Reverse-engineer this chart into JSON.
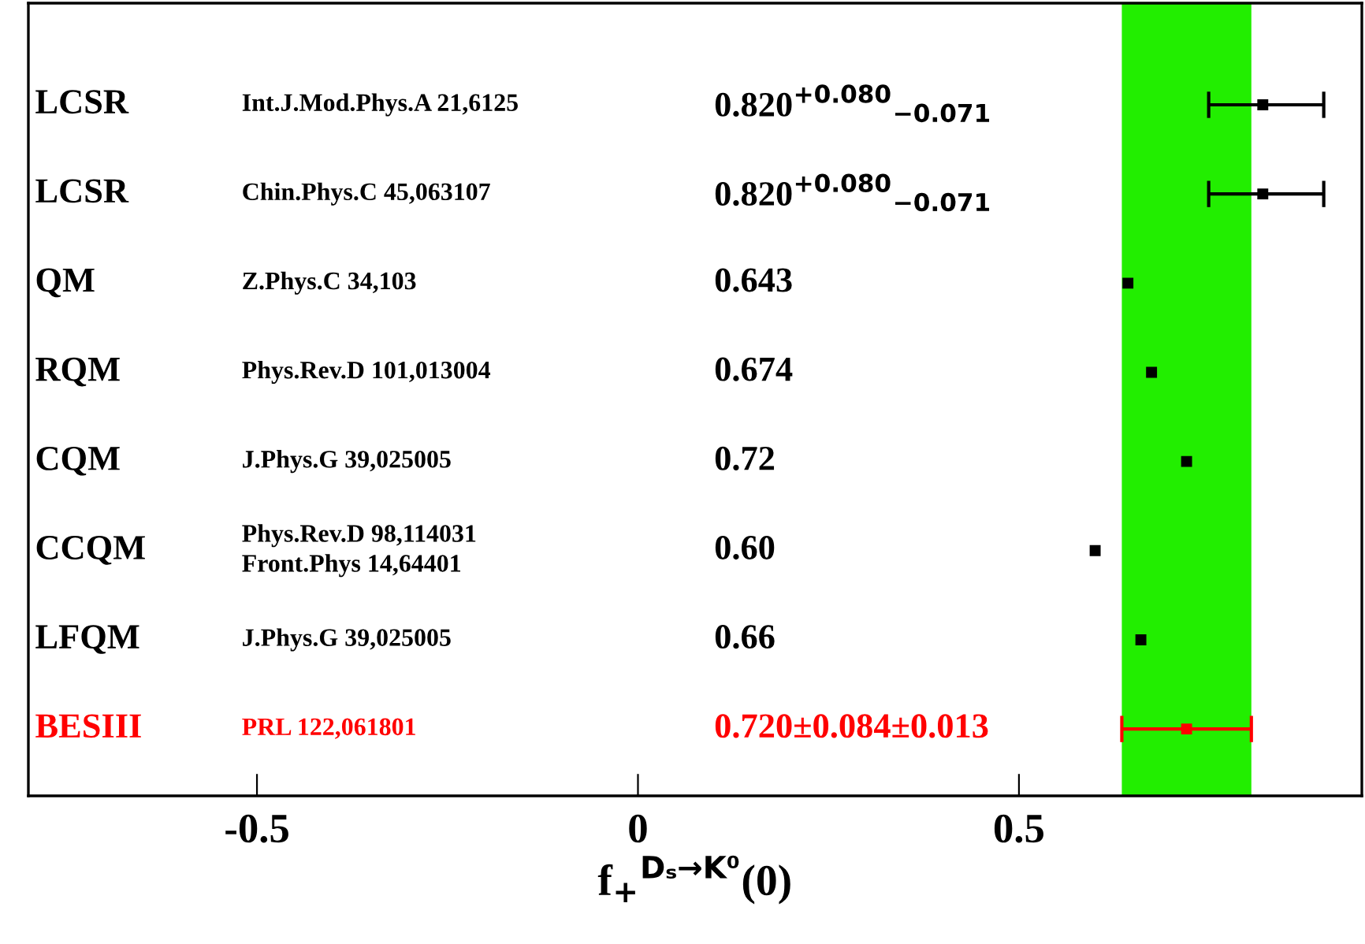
{
  "chart_data": {
    "type": "scatter",
    "orientation": "horizontal",
    "xlabel": "f$_{+}$$^{Dₛ→K⁰}$(0)",
    "categories": [
      "LCSR",
      "LCSR",
      "QM",
      "RQM",
      "CQM",
      "CCQM",
      "LFQM",
      "BESIII"
    ],
    "values": [
      0.82,
      0.82,
      0.643,
      0.674,
      0.72,
      0.6,
      0.66,
      0.72
    ],
    "colors": [
      "#000000",
      "#000000",
      "#000000",
      "#000000",
      "#000000",
      "#000000",
      "#000000",
      "#ff0000"
    ],
    "errors": [
      [
        0.749,
        0.9
      ],
      [
        0.749,
        0.9
      ],
      null,
      null,
      null,
      null,
      null,
      0.085
    ],
    "annotations": [
      "Int.J.Mod.Phys.A 21,6125",
      "Chin.Phys.C 45,063107",
      "Z.Phys.C 34,103",
      "Phys.Rev.D 101,013004",
      "J.Phys.G 39,025005",
      "Phys.Rev.D 98,114031\nFront.Phys 14,64401",
      "J.Phys.G 39,025005",
      "PRL 122,061801",
      "0.820$^{+0.080}$$_{−0.071}$",
      "0.820$^{+0.080}$$_{−0.071}$",
      "0.643",
      "0.674",
      "0.72",
      "0.60",
      "0.66",
      "0.720±0.084±0.013"
    ],
    "bands": [
      {
        "axis": "x",
        "from": 0.635,
        "to": 0.805,
        "color": "#22ee00"
      }
    ],
    "xlim": [
      -0.8,
      0.95
    ],
    "xticks": [
      -0.5,
      0,
      0.5
    ],
    "marker": "square",
    "grid": false,
    "legend": false
  }
}
